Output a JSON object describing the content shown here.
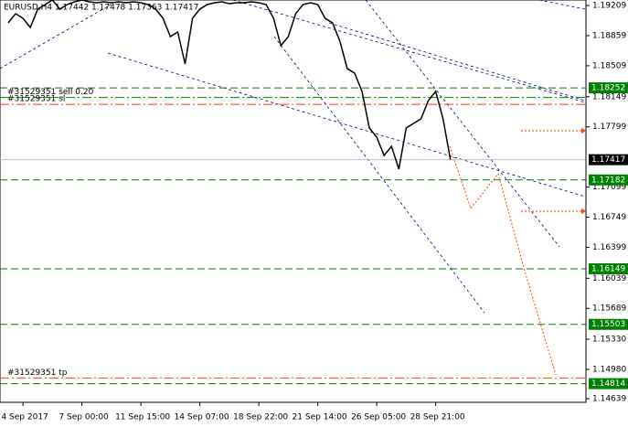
{
  "chart_data": {
    "type": "line",
    "title": "EURUSD,H4  1.17442 1.17478 1.17363 1.17417",
    "categories": [
      null,
      null,
      "4 Sep 2017",
      null,
      null,
      null,
      null,
      null,
      null,
      null,
      "7 Sep 00:00",
      null,
      null,
      null,
      null,
      null,
      null,
      null,
      "11 Sep 15:00",
      null,
      null,
      null,
      null,
      null,
      null,
      null,
      "14 Sep 07:00",
      null,
      null,
      null,
      null,
      null,
      null,
      null,
      "18 Sep 22:00",
      null,
      null,
      null,
      null,
      null,
      null,
      null,
      "21 Sep 14:00",
      null,
      null,
      null,
      null,
      null,
      null,
      null,
      "26 Sep 05:00",
      null,
      null,
      null,
      null,
      null,
      null,
      null,
      "28 Sep 21:00",
      null,
      null
    ],
    "values": [
      1.19007,
      1.19114,
      1.1906,
      1.18954,
      1.19167,
      1.1922,
      1.19273,
      1.19167,
      1.1922,
      1.19252,
      1.19273,
      1.19252,
      1.19241,
      1.19252,
      1.19241,
      1.19252,
      1.19241,
      1.19252,
      1.19241,
      1.1922,
      1.19167,
      1.1906,
      1.18848,
      1.18901,
      1.18529,
      1.1906,
      1.19167,
      1.1922,
      1.19241,
      1.19252,
      1.1923,
      1.19241,
      1.19241,
      1.19252,
      1.19241,
      1.1922,
      1.1906,
      1.18742,
      1.18848,
      1.19114,
      1.1922,
      1.19241,
      1.1922,
      1.1906,
      1.19007,
      1.18795,
      1.18476,
      1.18423,
      1.1821,
      1.17785,
      1.17679,
      1.17466,
      1.17572,
      1.17307,
      1.17785,
      1.17838,
      1.17891,
      1.18104,
      1.1821,
      1.17891,
      1.17417
    ],
    "color": "#000000",
    "ylim": [
      1.14597,
      1.19273
    ],
    "yticks": [
      1.19209,
      1.18859,
      1.18509,
      1.18149,
      1.17799,
      1.17099,
      1.16749,
      1.16399,
      1.16039,
      1.15689,
      {
        "value": 1.1533,
        "label": "1.15330"
      },
      {
        "value": 1.1498,
        "label": "1.14980"
      },
      1.14639
    ],
    "levels": [
      1.18252,
      1.17182,
      1.16149,
      1.15503,
      1.14814
    ],
    "level_color": "#008000",
    "current_price": 1.17417,
    "orders": [
      {
        "label": "#31529351 sell 0.20",
        "value": 1.1814,
        "color": "#008000"
      },
      {
        "label": "#31529351 sl",
        "value": 1.1806,
        "color": "#ff4400"
      },
      {
        "label": "#31529351 tp",
        "value": 1.1488,
        "color": "#ff4400"
      }
    ]
  }
}
